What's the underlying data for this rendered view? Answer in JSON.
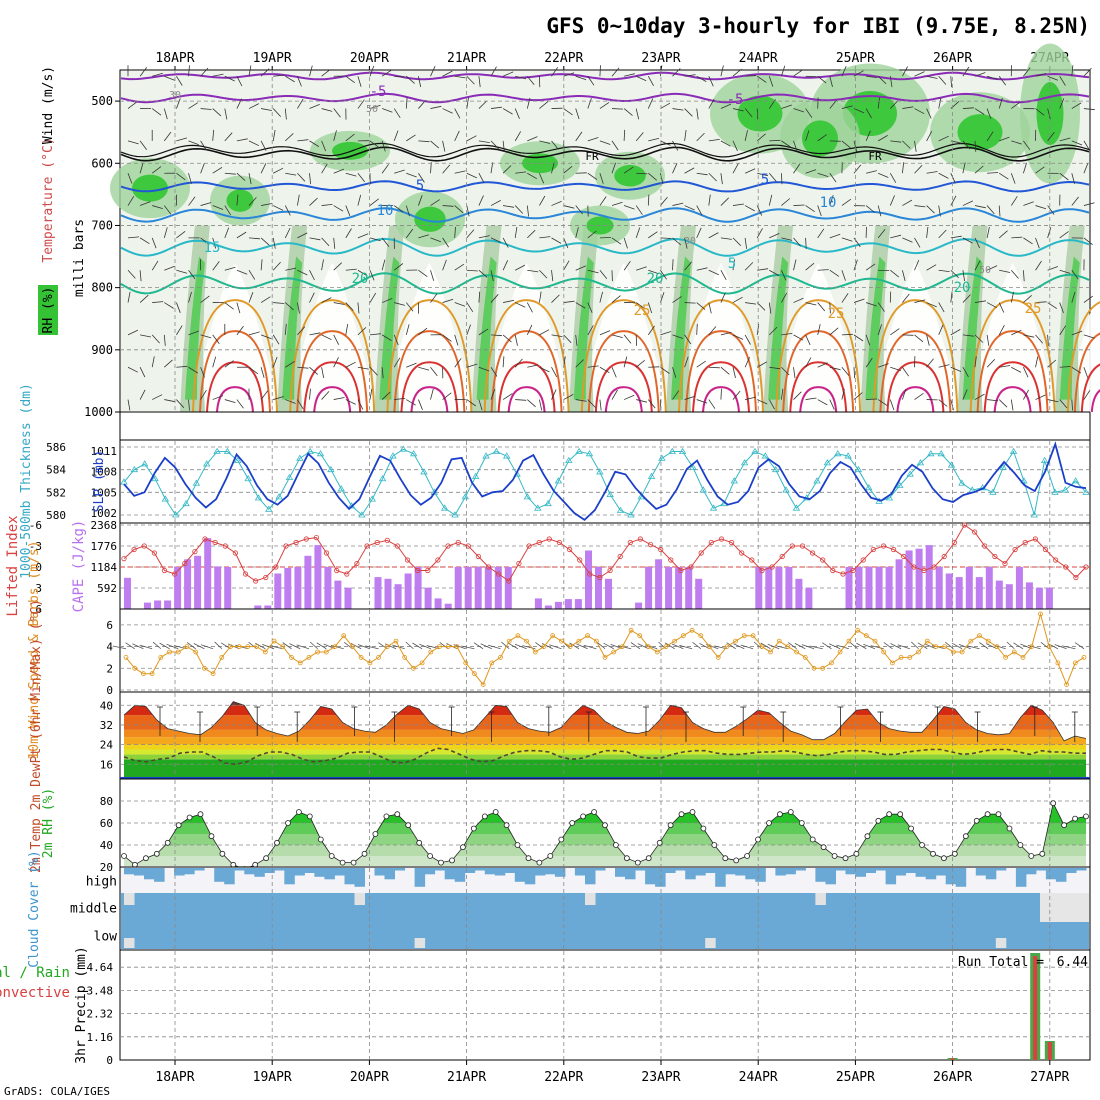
{
  "title": "GFS 0~10day 3-hourly for IBI (9.75E, 8.25N)",
  "footer": "GrADS: COLA/IGES",
  "dates": [
    "18APR",
    "19APR",
    "20APR",
    "21APR",
    "22APR",
    "23APR",
    "24APR",
    "25APR",
    "26APR",
    "27APR"
  ],
  "chart_data": [
    {
      "type": "heatmap",
      "name": "Upper-air cross section",
      "ylabel": "milli bars",
      "y_ticks": [
        500,
        600,
        700,
        800,
        900,
        1000
      ],
      "ylim": [
        450,
        1000
      ],
      "labels": {
        "rh": "RH (%)",
        "temp": "Temperature (°C)",
        "wind": "Wind (m/s)"
      },
      "isotherm_labels": [
        "-5",
        "-5",
        "FR",
        "FR",
        "5",
        "5",
        "10",
        "10",
        "15",
        "20",
        "20",
        "20",
        "25",
        "25",
        "25",
        "5",
        "30",
        "50",
        "30",
        "50"
      ]
    },
    {
      "type": "line",
      "name": "SLP and thickness",
      "ylabel_left": "1000-500mb Thickness (dm)",
      "ylabel_right": "SLP (mb)",
      "left_ticks": [
        580,
        582,
        584,
        586
      ],
      "right_ticks": [
        1002,
        1005,
        1008,
        1011
      ],
      "thickness_dm": [
        582.9,
        584.0,
        584.5,
        583.2,
        581.4,
        580.0,
        581.0,
        582.8,
        584.5,
        585.6,
        585.6,
        584.8,
        583.2,
        581.5,
        580.5,
        581.6,
        583.3,
        585.0,
        585.6,
        585.4,
        584.0,
        582.3,
        580.8,
        580.0,
        581.4,
        583.2,
        585.2,
        585.8,
        585.4,
        583.8,
        582.0,
        580.6,
        580.0,
        581.6,
        583.4,
        585.2,
        585.6,
        585.2,
        583.6,
        581.6,
        580.6,
        581.0,
        583.0,
        584.8,
        585.6,
        585.4,
        583.8,
        581.8,
        580.4,
        580.0,
        581.6,
        583.4,
        585.0,
        585.6,
        585.6,
        584.2,
        582.2,
        580.6,
        581.0,
        583.0,
        584.6,
        585.6,
        585.2,
        584.0,
        582.2,
        580.6,
        581.5,
        583.0,
        584.6,
        585.4,
        585.2,
        584.0,
        582.4,
        581.2,
        581.5,
        582.6,
        583.6,
        584.6,
        585.4,
        585.4,
        584.4,
        582.8,
        582.2,
        582.4,
        582.0,
        584.2,
        585.6,
        583.0,
        580.0,
        584.8,
        582.0,
        582.2,
        583.0,
        582.0
      ],
      "slp_mb": [
        1006.2,
        1004.5,
        1005.0,
        1007.8,
        1010.0,
        1008.6,
        1006.2,
        1004.2,
        1002.8,
        1004.0,
        1007.0,
        1010.5,
        1008.8,
        1006.0,
        1004.0,
        1003.2,
        1004.5,
        1007.6,
        1010.6,
        1009.2,
        1006.4,
        1004.2,
        1002.6,
        1004.0,
        1007.2,
        1010.3,
        1009.6,
        1007.0,
        1004.6,
        1003.2,
        1004.2,
        1006.4,
        1009.8,
        1010.0,
        1006.4,
        1004.4,
        1005.0,
        1005.2,
        1006.8,
        1009.6,
        1010.4,
        1007.6,
        1005.2,
        1003.6,
        1002.0,
        1001.0,
        1002.4,
        1005.0,
        1008.0,
        1007.6,
        1005.6,
        1004.0,
        1002.6,
        1003.2,
        1005.4,
        1008.4,
        1009.6,
        1006.8,
        1004.4,
        1003.2,
        1003.6,
        1005.2,
        1008.6,
        1009.8,
        1008.8,
        1006.2,
        1004.4,
        1004.0,
        1005.2,
        1007.8,
        1009.4,
        1008.6,
        1006.2,
        1004.2,
        1003.8,
        1004.8,
        1007.4,
        1009.0,
        1008.0,
        1005.6,
        1004.0,
        1003.6,
        1004.6,
        1005.0,
        1005.6,
        1007.6,
        1009.4,
        1007.8,
        1006.0,
        1005.2,
        1008.0,
        1012.0,
        1006.4,
        1005.8,
        1005.6
      ]
    },
    {
      "type": "bar",
      "name": "Lifted index and CAPE",
      "ylabel_left": "Lifted Index",
      "ylabel_right": "CAPE (J/kg)",
      "li_ticks": [
        -6,
        -3,
        0,
        3,
        6
      ],
      "cape_ticks": [
        592,
        1184,
        1776,
        2368
      ],
      "lifted_index": [
        -1.2,
        -2.5,
        -3.0,
        -2.0,
        0.5,
        1.0,
        -0.5,
        -2.2,
        -4.0,
        -3.5,
        -3.0,
        -2.0,
        1.0,
        2.0,
        1.5,
        0.0,
        -3.0,
        -3.5,
        -4.0,
        -4.2,
        -2.0,
        0.5,
        1.0,
        -0.5,
        -3.0,
        -3.5,
        -3.8,
        -3.0,
        -1.0,
        0.5,
        0.5,
        -1.0,
        -3.0,
        -3.5,
        -3.0,
        -1.5,
        0.0,
        1.0,
        2.0,
        -0.5,
        -3.0,
        -3.5,
        -4.0,
        -3.5,
        -2.5,
        -1.0,
        1.0,
        1.5,
        0.5,
        -1.5,
        -3.5,
        -4.0,
        -3.2,
        -2.5,
        -1.0,
        0.5,
        0.0,
        -2.0,
        -3.5,
        -4.0,
        -3.5,
        -2.0,
        -1.0,
        0.5,
        0.0,
        -1.5,
        -3.0,
        -3.0,
        -2.0,
        -1.0,
        0.5,
        1.0,
        0.5,
        -1.0,
        -2.5,
        -3.0,
        -2.5,
        -1.5,
        0.0,
        0.5,
        0.0,
        -1.5,
        -3.5,
        -6.0,
        -5.0,
        -3.0,
        -1.5,
        -0.5,
        -2.5,
        -3.5,
        -4.0,
        -2.5,
        -1.0,
        0.0,
        1.5,
        0.0
      ],
      "cape": [
        [
          0,
          880
        ],
        [
          1,
          0
        ],
        [
          2,
          180
        ],
        [
          3,
          240
        ],
        [
          4,
          240
        ],
        [
          5,
          1184
        ],
        [
          6,
          1400
        ],
        [
          7,
          1500
        ],
        [
          8,
          2000
        ],
        [
          9,
          1200
        ],
        [
          10,
          1184
        ],
        [
          11,
          0
        ],
        [
          12,
          0
        ],
        [
          13,
          100
        ],
        [
          14,
          100
        ],
        [
          15,
          1000
        ],
        [
          16,
          1160
        ],
        [
          17,
          1184
        ],
        [
          18,
          1500
        ],
        [
          19,
          1800
        ],
        [
          20,
          1184
        ],
        [
          21,
          800
        ],
        [
          22,
          600
        ],
        [
          23,
          0
        ],
        [
          24,
          0
        ],
        [
          25,
          900
        ],
        [
          26,
          850
        ],
        [
          27,
          700
        ],
        [
          28,
          1000
        ],
        [
          29,
          1184
        ],
        [
          30,
          600
        ],
        [
          31,
          300
        ],
        [
          32,
          150
        ],
        [
          33,
          1184
        ],
        [
          34,
          1184
        ],
        [
          35,
          1184
        ],
        [
          36,
          1184
        ],
        [
          37,
          1184
        ],
        [
          38,
          1184
        ],
        [
          39,
          0
        ],
        [
          40,
          0
        ],
        [
          41,
          300
        ],
        [
          42,
          100
        ],
        [
          43,
          200
        ],
        [
          44,
          280
        ],
        [
          45,
          280
        ],
        [
          46,
          1650
        ],
        [
          47,
          1184
        ],
        [
          48,
          850
        ],
        [
          49,
          0
        ],
        [
          50,
          0
        ],
        [
          51,
          180
        ],
        [
          52,
          1184
        ],
        [
          53,
          1400
        ],
        [
          54,
          1184
        ],
        [
          55,
          1184
        ],
        [
          56,
          1184
        ],
        [
          57,
          850
        ],
        [
          58,
          0
        ],
        [
          59,
          0
        ],
        [
          60,
          0
        ],
        [
          61,
          0
        ],
        [
          62,
          0
        ],
        [
          63,
          1184
        ],
        [
          64,
          1184
        ],
        [
          65,
          1184
        ],
        [
          66,
          1184
        ],
        [
          67,
          850
        ],
        [
          68,
          600
        ],
        [
          69,
          0
        ],
        [
          70,
          0
        ],
        [
          71,
          0
        ],
        [
          72,
          1184
        ],
        [
          73,
          1184
        ],
        [
          74,
          1184
        ],
        [
          75,
          1184
        ],
        [
          76,
          1184
        ],
        [
          77,
          1400
        ],
        [
          78,
          1650
        ],
        [
          79,
          1700
        ],
        [
          80,
          1800
        ],
        [
          81,
          1184
        ],
        [
          82,
          1000
        ],
        [
          83,
          900
        ],
        [
          84,
          1184
        ],
        [
          85,
          900
        ],
        [
          86,
          1184
        ],
        [
          87,
          800
        ],
        [
          88,
          700
        ],
        [
          89,
          1184
        ],
        [
          90,
          750
        ],
        [
          91,
          600
        ],
        [
          92,
          600
        ],
        [
          93,
          0
        ],
        [
          94,
          0
        ],
        [
          95,
          0
        ]
      ]
    },
    {
      "type": "line",
      "name": "10m wind",
      "ylabel": "10m Wind Speed & Barbs (m/s)",
      "y_ticks": [
        0,
        2,
        4,
        6
      ],
      "speed_ms": [
        3.0,
        2.0,
        1.5,
        1.5,
        3.0,
        3.5,
        3.5,
        4.0,
        3.5,
        2.0,
        1.5,
        3.0,
        4.0,
        4.0,
        4.0,
        4.0,
        3.5,
        4.5,
        4.0,
        3.0,
        2.5,
        3.0,
        3.5,
        3.5,
        4.0,
        5.0,
        4.0,
        3.0,
        2.5,
        3.0,
        4.0,
        4.5,
        3.0,
        2.0,
        2.5,
        3.5,
        4.0,
        4.0,
        4.0,
        2.5,
        1.5,
        0.5,
        2.5,
        3.0,
        4.5,
        5.0,
        4.5,
        3.5,
        4.0,
        5.0,
        4.5,
        4.0,
        4.5,
        5.0,
        4.5,
        3.0,
        3.5,
        4.0,
        5.5,
        5.0,
        4.0,
        3.5,
        4.0,
        4.5,
        5.0,
        5.5,
        5.0,
        4.0,
        3.0,
        4.0,
        4.5,
        5.0,
        5.0,
        4.0,
        3.5,
        4.5,
        4.0,
        3.5,
        3.0,
        2.0,
        2.0,
        2.5,
        3.5,
        4.5,
        5.5,
        5.0,
        4.5,
        3.5,
        2.5,
        3.0,
        3.0,
        3.5,
        4.5,
        4.0,
        4.0,
        3.5,
        3.5,
        4.5,
        5.0,
        4.5,
        4.0,
        3.0,
        3.5,
        3.0,
        4.0,
        7.0,
        4.0,
        2.5,
        0.5,
        2.5,
        3.0
      ]
    },
    {
      "type": "area",
      "name": "2m temperature and dewpoint",
      "ylabel": "2m Temp 2m DewPt (6hr Min/Max) (°C)",
      "y_ticks": [
        16,
        24,
        32,
        40
      ],
      "temp_c": [
        36.0,
        40.0,
        39.5,
        34.0,
        30.5,
        29.5,
        28.5,
        28.0,
        31.0,
        35.5,
        41.5,
        40.0,
        33.0,
        30.0,
        28.5,
        27.5,
        29.5,
        34.0,
        39.5,
        38.5,
        33.0,
        30.5,
        29.5,
        29.0,
        32.0,
        36.5,
        40.0,
        38.5,
        33.0,
        30.5,
        29.5,
        28.5,
        30.0,
        35.0,
        40.0,
        39.5,
        33.0,
        30.5,
        29.5,
        29.0,
        31.0,
        36.0,
        40.0,
        38.0,
        33.5,
        31.0,
        29.0,
        28.5,
        29.5,
        34.0,
        40.0,
        39.0,
        33.0,
        30.5,
        29.0,
        29.0,
        31.5,
        34.5,
        38.0,
        37.0,
        33.0,
        29.5,
        28.0,
        26.0,
        26.0,
        28.5,
        33.5,
        38.0,
        38.5,
        33.0,
        30.5,
        29.5,
        29.0,
        29.0,
        34.0,
        39.5,
        38.5,
        33.0,
        30.0,
        28.5,
        28.0,
        28.5,
        35.0,
        40.0,
        38.0,
        33.0,
        25.5,
        27.5,
        26.5
      ],
      "dewpoint_c": [
        19.0,
        17.5,
        17.0,
        18.0,
        18.5,
        20.5,
        21.0,
        21.0,
        19.0,
        16.5,
        16.0,
        17.0,
        19.5,
        21.0,
        21.0,
        20.0,
        18.0,
        17.0,
        17.5,
        18.5,
        20.5,
        21.0,
        21.0,
        19.0,
        17.0,
        16.5,
        18.0,
        20.5,
        22.5,
        22.0,
        20.0,
        18.0,
        17.0,
        17.5,
        19.5,
        21.0,
        21.5,
        21.5,
        21.0,
        19.0,
        18.0,
        18.5,
        20.0,
        21.5,
        21.5,
        21.0,
        19.0,
        18.5,
        18.5,
        20.0,
        21.0,
        21.5,
        21.5,
        20.5,
        20.0,
        20.0,
        20.5,
        21.0,
        21.0,
        21.5,
        21.0,
        20.0,
        19.5,
        20.0,
        21.0,
        21.5,
        21.5,
        21.0,
        20.0,
        20.0,
        21.0,
        21.5,
        22.0,
        22.0,
        21.0,
        20.0,
        20.5,
        21.5,
        22.0,
        22.0,
        21.0,
        20.0,
        21.5,
        21.0,
        21.0,
        20.5,
        20.5
      ]
    },
    {
      "type": "area",
      "name": "2m relative humidity",
      "ylabel": "2m RH (%)",
      "y_ticks": [
        20,
        40,
        60,
        80
      ],
      "rh_pct": [
        30,
        22,
        28,
        32,
        42,
        58,
        65,
        68,
        48,
        32,
        22,
        18,
        22,
        28,
        42,
        60,
        70,
        66,
        45,
        30,
        24,
        24,
        32,
        50,
        66,
        68,
        58,
        42,
        30,
        24,
        26,
        38,
        55,
        66,
        70,
        58,
        40,
        28,
        24,
        30,
        45,
        60,
        66,
        70,
        58,
        40,
        28,
        24,
        28,
        42,
        58,
        68,
        70,
        55,
        40,
        28,
        26,
        30,
        45,
        60,
        68,
        70,
        60,
        45,
        38,
        30,
        28,
        32,
        48,
        62,
        68,
        68,
        55,
        40,
        32,
        28,
        32,
        48,
        62,
        68,
        68,
        55,
        40,
        30,
        32,
        78,
        58,
        64,
        66
      ]
    },
    {
      "type": "bar",
      "name": "Cloud cover",
      "ylabel": "Cloud Cover (%)",
      "levels": [
        "high",
        "middle",
        "low"
      ]
    },
    {
      "type": "bar",
      "name": "3hr precipitation",
      "ylabel": "3hr Precip (mm)",
      "legend_total": "Total / Rain",
      "legend_convective": "Convective",
      "run_total_label": "Run Total =",
      "run_total_value": "6.44",
      "y_ticks": [
        0,
        1.16,
        2.32,
        3.48,
        4.64
      ],
      "ylim": [
        0,
        5.8
      ],
      "bars": [
        {
          "x": 8.0,
          "total": 0.1,
          "convective": 0.08
        },
        {
          "x": 8.85,
          "total": 5.35,
          "convective": 5.2
        },
        {
          "x": 9.0,
          "total": 0.95,
          "convective": 0.9
        }
      ]
    }
  ]
}
